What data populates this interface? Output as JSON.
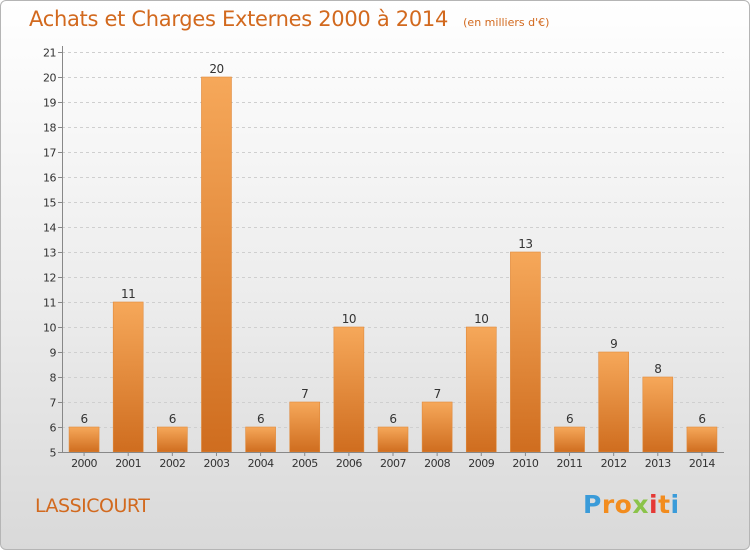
{
  "title": "Achats et Charges Externes 2000 à 2014",
  "subtitle": "(en milliers d'€)",
  "commune": "LASSICOURT",
  "logo": {
    "letters": [
      "P",
      "r",
      "o",
      "x",
      "i",
      "t",
      "i"
    ],
    "colors": [
      "#3a9bd9",
      "#f28c1e",
      "#f28c1e",
      "#8bc34a",
      "#e53935",
      "#f28c1e",
      "#3a9bd9"
    ]
  },
  "colors": {
    "accent": "#d2691e",
    "bar_light": "#f6a85a",
    "bar_dark": "#cf6d1f"
  },
  "chart_data": {
    "type": "bar",
    "categories": [
      "2000",
      "2001",
      "2002",
      "2003",
      "2004",
      "2005",
      "2006",
      "2007",
      "2008",
      "2009",
      "2010",
      "2011",
      "2012",
      "2013",
      "2014"
    ],
    "values": [
      6,
      11,
      6,
      20,
      6,
      7,
      10,
      6,
      7,
      10,
      13,
      6,
      9,
      8,
      6
    ],
    "ylim": [
      5,
      21
    ],
    "yticks": [
      5,
      6,
      7,
      8,
      9,
      10,
      11,
      12,
      13,
      14,
      15,
      16,
      17,
      18,
      19,
      20,
      21
    ],
    "grid": true,
    "data_labels": true
  }
}
